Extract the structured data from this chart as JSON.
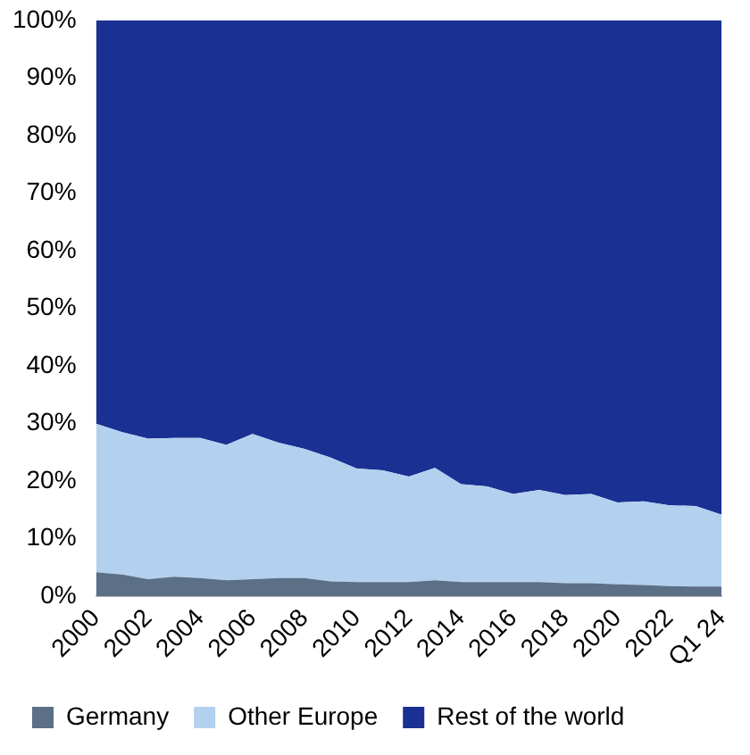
{
  "chart_data": {
    "type": "area",
    "stacked": true,
    "legend": "bottom",
    "grid": false,
    "marker": "none",
    "categories": [
      "2000",
      null,
      "2002",
      null,
      "2004",
      null,
      "2006",
      null,
      "2008",
      null,
      "2010",
      null,
      "2012",
      null,
      "2014",
      null,
      "2016",
      null,
      "2018",
      null,
      "2020",
      null,
      "2022",
      null,
      "Q1 24"
    ],
    "ylim": [
      0,
      100
    ],
    "yticks": [
      {
        "value": 0,
        "label": "0%"
      },
      {
        "value": 10,
        "label": "10%"
      },
      {
        "value": 20,
        "label": "20%"
      },
      {
        "value": 30,
        "label": "30%"
      },
      {
        "value": 40,
        "label": "40%"
      },
      {
        "value": 50,
        "label": "50%"
      },
      {
        "value": 60,
        "label": "60%"
      },
      {
        "value": 70,
        "label": "70%"
      },
      {
        "value": 80,
        "label": "80%"
      },
      {
        "value": 90,
        "label": "90%"
      },
      {
        "value": 100,
        "label": "100%"
      }
    ],
    "series": [
      {
        "name": "Germany",
        "color": "#5b6f87",
        "values": [
          4.2,
          3.8,
          3.0,
          3.4,
          3.2,
          2.8,
          3.0,
          3.2,
          3.2,
          2.6,
          2.5,
          2.5,
          2.5,
          2.8,
          2.5,
          2.5,
          2.5,
          2.5,
          2.3,
          2.3,
          2.1,
          2.0,
          1.8,
          1.7,
          1.7
        ]
      },
      {
        "name": "Other Europe",
        "color": "#b3d0ee",
        "values": [
          25.8,
          24.7,
          24.4,
          24.1,
          24.3,
          23.5,
          25.2,
          23.5,
          22.4,
          21.5,
          19.7,
          19.4,
          18.3,
          19.5,
          17.0,
          16.6,
          15.3,
          16.0,
          15.3,
          15.5,
          14.2,
          14.5,
          14.0,
          14.0,
          12.5
        ]
      },
      {
        "name": "Rest of the world",
        "color": "#1b3093",
        "values": [
          70.0,
          71.5,
          72.6,
          72.5,
          72.5,
          73.7,
          71.8,
          73.3,
          74.4,
          75.9,
          77.8,
          78.1,
          79.2,
          77.7,
          80.5,
          80.9,
          82.2,
          81.5,
          82.4,
          82.2,
          83.7,
          83.5,
          84.2,
          84.3,
          85.8
        ]
      }
    ]
  }
}
